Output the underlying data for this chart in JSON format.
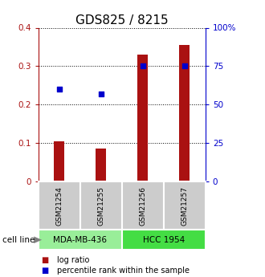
{
  "title": "GDS825 / 8215",
  "samples": [
    "GSM21254",
    "GSM21255",
    "GSM21256",
    "GSM21257"
  ],
  "log_ratio": [
    0.105,
    0.085,
    0.33,
    0.355
  ],
  "percentile_rank": [
    0.24,
    0.228,
    0.3,
    0.3
  ],
  "groups": [
    {
      "label": "MDA-MB-436",
      "samples": [
        0,
        1
      ],
      "color": "#99ee99"
    },
    {
      "label": "HCC 1954",
      "samples": [
        2,
        3
      ],
      "color": "#44dd44"
    }
  ],
  "ylim_left": [
    0,
    0.4
  ],
  "ylim_right": [
    0,
    1.0
  ],
  "yticks_left": [
    0,
    0.1,
    0.2,
    0.3,
    0.4
  ],
  "ytick_labels_left": [
    "0",
    "0.1",
    "0.2",
    "0.3",
    "0.4"
  ],
  "yticks_right_vals": [
    0,
    0.25,
    0.5,
    0.75,
    1.0
  ],
  "ytick_labels_right": [
    "0",
    "25",
    "50",
    "75",
    "100%"
  ],
  "bar_color": "#aa1111",
  "square_color": "#0000cc",
  "label_box_color": "#cccccc",
  "title_fontsize": 11,
  "tick_fontsize": 7.5,
  "bar_width": 0.25
}
